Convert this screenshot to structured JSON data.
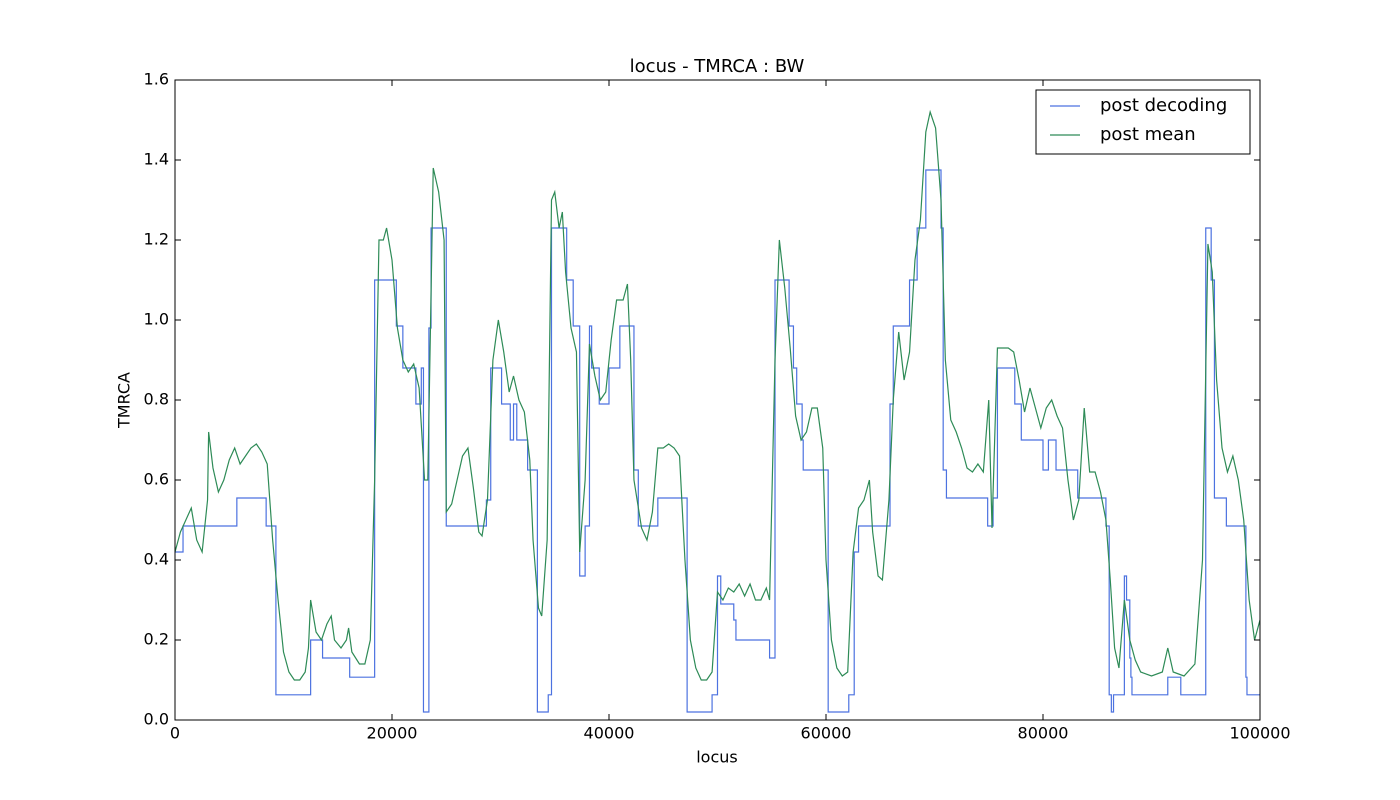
{
  "chart_data": {
    "type": "line",
    "title": "locus - TMRCA : BW",
    "x_label": "locus",
    "y_label": "TMRCA",
    "xlim": [
      0,
      100000
    ],
    "ylim": [
      0,
      1.6
    ],
    "xticks": [
      0,
      20000,
      40000,
      60000,
      80000,
      100000
    ],
    "yticks": [
      {
        "value": 0,
        "label": "0.0"
      },
      0.2,
      0.4,
      0.6,
      0.8,
      {
        "value": 1,
        "label": "1.0"
      },
      1.2,
      1.4,
      1.6
    ],
    "legend": "upper right",
    "grid": false,
    "series": [
      {
        "name": "post decoding",
        "color": "#4c72e0",
        "step": "post",
        "x": [
          0,
          740,
          5700,
          8400,
          9300,
          12500,
          13600,
          16100,
          18400,
          20400,
          21000,
          22200,
          22700,
          22900,
          23400,
          23600,
          25000,
          28700,
          29100,
          30100,
          30900,
          31200,
          31500,
          32500,
          33400,
          34400,
          34700,
          36100,
          36700,
          37300,
          37800,
          38200,
          38400,
          39100,
          40000,
          41000,
          42300,
          42700,
          44500,
          47200,
          49500,
          50000,
          50300,
          51500,
          51700,
          54800,
          55300,
          56600,
          57000,
          57300,
          57800,
          57900,
          60200,
          62100,
          62600,
          63000,
          65900,
          66200,
          67700,
          68400,
          69200,
          70600,
          70800,
          71100,
          74900,
          75400,
          75800,
          77400,
          78000,
          80000,
          80500,
          81200,
          83200,
          85800,
          86100,
          86300,
          86500,
          87500,
          87700,
          88000,
          88100,
          88200,
          91500,
          92700,
          95000,
          95500,
          95800,
          96900,
          98700,
          98800,
          100000
        ],
        "values": [
          0.42,
          0.485,
          0.555,
          0.485,
          0.063,
          0.2,
          0.155,
          0.107,
          1.1,
          0.985,
          0.88,
          0.79,
          0.88,
          0.02,
          0.98,
          1.23,
          0.485,
          0.55,
          0.88,
          0.79,
          0.7,
          0.79,
          0.7,
          0.625,
          0.02,
          0.063,
          1.23,
          1.1,
          0.985,
          0.36,
          0.485,
          0.985,
          0.88,
          0.79,
          0.88,
          0.985,
          0.625,
          0.485,
          0.555,
          0.02,
          0.063,
          0.36,
          0.29,
          0.25,
          0.2,
          0.155,
          1.1,
          0.985,
          0.88,
          0.79,
          0.7,
          0.625,
          0.02,
          0.063,
          0.42,
          0.485,
          0.79,
          0.985,
          1.1,
          1.23,
          1.375,
          1.23,
          0.625,
          0.555,
          0.485,
          0.555,
          0.88,
          0.79,
          0.7,
          0.625,
          0.7,
          0.625,
          0.555,
          0.485,
          0.063,
          0.02,
          0.063,
          0.36,
          0.3,
          0.155,
          0.107,
          0.063,
          0.107,
          0.063,
          1.23,
          1.1,
          0.555,
          0.485,
          0.107,
          0.063,
          0.063
        ]
      },
      {
        "name": "post mean",
        "color": "#2e8b57",
        "x": [
          0,
          500,
          1000,
          1500,
          2000,
          2500,
          3000,
          3100,
          3500,
          4000,
          4500,
          5000,
          5500,
          6000,
          6500,
          7000,
          7500,
          8000,
          8500,
          9000,
          9500,
          10000,
          10500,
          11000,
          11500,
          12000,
          12300,
          12500,
          13000,
          13500,
          14000,
          14400,
          14700,
          15300,
          15800,
          16000,
          16300,
          17000,
          17500,
          18000,
          18400,
          18800,
          19200,
          19500,
          20000,
          20500,
          21000,
          21500,
          22000,
          22500,
          23000,
          23300,
          23800,
          24300,
          24800,
          25000,
          25500,
          26000,
          26500,
          27000,
          27500,
          28000,
          28300,
          28800,
          29300,
          29800,
          30300,
          30800,
          31200,
          31700,
          32200,
          32700,
          33000,
          33500,
          33800,
          34300,
          34700,
          35000,
          35400,
          35700,
          36000,
          36500,
          37000,
          37300,
          37800,
          38200,
          38700,
          39200,
          39700,
          40200,
          40700,
          41300,
          41700,
          42000,
          42300,
          43000,
          43500,
          44000,
          44500,
          45000,
          45500,
          46000,
          46500,
          47000,
          47500,
          48000,
          48500,
          49000,
          49500,
          50000,
          50500,
          51000,
          51500,
          52000,
          52500,
          53000,
          53500,
          54000,
          54500,
          54800,
          55300,
          55700,
          56200,
          56700,
          57200,
          57700,
          58200,
          58700,
          59200,
          59700,
          60000,
          60500,
          61000,
          61500,
          62000,
          62500,
          63000,
          63500,
          64000,
          64300,
          64800,
          65200,
          65800,
          66200,
          66700,
          67200,
          67700,
          68200,
          68700,
          69200,
          69600,
          70100,
          70600,
          71000,
          71500,
          72000,
          72500,
          73000,
          73500,
          74000,
          74500,
          75000,
          75300,
          75800,
          76300,
          76800,
          77300,
          77800,
          78300,
          78800,
          79300,
          79800,
          80300,
          80800,
          81300,
          81800,
          82300,
          82800,
          83300,
          83800,
          84300,
          84800,
          85300,
          85800,
          86200,
          86600,
          87000,
          87500,
          88000,
          88500,
          89000,
          90000,
          91000,
          91500,
          92000,
          93000,
          94000,
          94700,
          95200,
          95600,
          96000,
          96500,
          97000,
          97500,
          98000,
          98500,
          99000,
          99500,
          100000
        ],
        "values": [
          0.42,
          0.47,
          0.5,
          0.53,
          0.45,
          0.42,
          0.55,
          0.72,
          0.63,
          0.57,
          0.6,
          0.65,
          0.68,
          0.64,
          0.66,
          0.68,
          0.69,
          0.67,
          0.64,
          0.45,
          0.3,
          0.17,
          0.12,
          0.1,
          0.1,
          0.12,
          0.18,
          0.3,
          0.22,
          0.2,
          0.24,
          0.26,
          0.2,
          0.18,
          0.2,
          0.23,
          0.17,
          0.14,
          0.14,
          0.2,
          0.6,
          1.2,
          1.2,
          1.23,
          1.15,
          0.98,
          0.9,
          0.87,
          0.89,
          0.83,
          0.6,
          0.6,
          1.38,
          1.32,
          1.2,
          0.52,
          0.54,
          0.6,
          0.66,
          0.68,
          0.58,
          0.47,
          0.46,
          0.55,
          0.9,
          1.0,
          0.92,
          0.82,
          0.86,
          0.8,
          0.77,
          0.65,
          0.45,
          0.28,
          0.26,
          0.45,
          1.3,
          1.32,
          1.23,
          1.27,
          1.12,
          0.98,
          0.92,
          0.42,
          0.6,
          0.94,
          0.86,
          0.8,
          0.82,
          0.95,
          1.05,
          1.05,
          1.09,
          0.9,
          0.6,
          0.48,
          0.45,
          0.52,
          0.68,
          0.68,
          0.69,
          0.68,
          0.66,
          0.4,
          0.2,
          0.13,
          0.1,
          0.1,
          0.12,
          0.32,
          0.3,
          0.33,
          0.32,
          0.34,
          0.31,
          0.34,
          0.3,
          0.3,
          0.33,
          0.3,
          0.9,
          1.2,
          1.08,
          0.93,
          0.76,
          0.7,
          0.72,
          0.78,
          0.78,
          0.68,
          0.4,
          0.2,
          0.13,
          0.11,
          0.12,
          0.42,
          0.53,
          0.55,
          0.6,
          0.47,
          0.36,
          0.35,
          0.55,
          0.8,
          0.97,
          0.85,
          0.92,
          1.15,
          1.25,
          1.47,
          1.52,
          1.48,
          1.3,
          0.9,
          0.75,
          0.72,
          0.68,
          0.63,
          0.62,
          0.64,
          0.62,
          0.8,
          0.48,
          0.93,
          0.93,
          0.93,
          0.92,
          0.85,
          0.77,
          0.83,
          0.78,
          0.73,
          0.78,
          0.8,
          0.76,
          0.73,
          0.6,
          0.5,
          0.55,
          0.78,
          0.62,
          0.62,
          0.57,
          0.5,
          0.35,
          0.18,
          0.13,
          0.3,
          0.2,
          0.15,
          0.12,
          0.11,
          0.12,
          0.18,
          0.12,
          0.11,
          0.14,
          0.4,
          1.19,
          1.12,
          0.85,
          0.68,
          0.62,
          0.66,
          0.6,
          0.5,
          0.3,
          0.2,
          0.25
        ]
      }
    ]
  }
}
